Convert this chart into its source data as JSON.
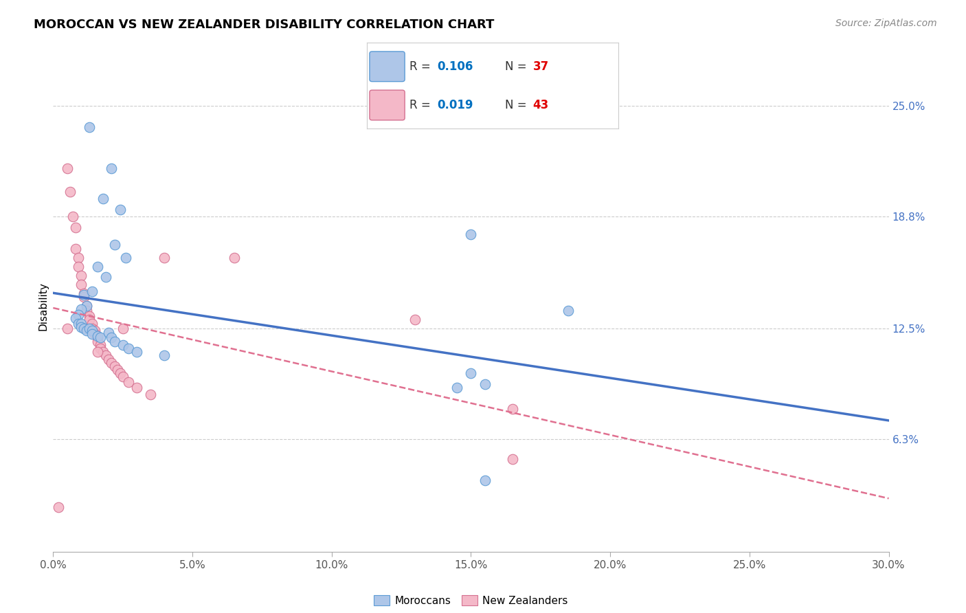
{
  "title": "MOROCCAN VS NEW ZEALANDER DISABILITY CORRELATION CHART",
  "source": "Source: ZipAtlas.com",
  "ylabel": "Disability",
  "xlim": [
    0.0,
    0.3
  ],
  "ylim": [
    0.0,
    27.5
  ],
  "moroccan_color": "#aec6e8",
  "moroccan_edge_color": "#5b9bd5",
  "nz_color": "#f4b8c8",
  "nz_edge_color": "#d47090",
  "moroccan_line_color": "#4472c4",
  "nz_line_color": "#e07090",
  "legend_R_color": "#0070c0",
  "legend_N_color": "#e00000",
  "ytick_positions": [
    6.3,
    12.5,
    18.8,
    25.0
  ],
  "ytick_labels": [
    "6.3%",
    "12.5%",
    "18.8%",
    "25.0%"
  ],
  "moroccan_x": [
    0.013,
    0.021,
    0.018,
    0.024,
    0.022,
    0.026,
    0.016,
    0.019,
    0.011,
    0.014,
    0.012,
    0.01,
    0.009,
    0.008,
    0.009,
    0.01,
    0.01,
    0.011,
    0.012,
    0.013,
    0.014,
    0.014,
    0.016,
    0.017,
    0.02,
    0.021,
    0.022,
    0.025,
    0.027,
    0.03,
    0.04,
    0.15,
    0.185,
    0.155,
    0.145,
    0.15,
    0.155
  ],
  "moroccan_y": [
    23.8,
    21.5,
    19.8,
    19.2,
    17.2,
    16.5,
    16.0,
    15.4,
    14.4,
    14.6,
    13.8,
    13.6,
    13.3,
    13.1,
    12.8,
    12.8,
    12.6,
    12.5,
    12.4,
    12.5,
    12.4,
    12.2,
    12.1,
    12.0,
    12.3,
    12.0,
    11.8,
    11.6,
    11.4,
    11.2,
    11.0,
    17.8,
    13.5,
    9.4,
    9.2,
    10.0,
    4.0
  ],
  "nz_x": [
    0.005,
    0.006,
    0.007,
    0.008,
    0.008,
    0.009,
    0.009,
    0.01,
    0.01,
    0.011,
    0.011,
    0.012,
    0.012,
    0.013,
    0.013,
    0.014,
    0.014,
    0.015,
    0.015,
    0.016,
    0.016,
    0.017,
    0.017,
    0.018,
    0.019,
    0.02,
    0.021,
    0.022,
    0.023,
    0.024,
    0.025,
    0.027,
    0.03,
    0.035,
    0.04,
    0.13,
    0.005,
    0.016,
    0.025,
    0.065,
    0.002,
    0.165,
    0.165
  ],
  "nz_y": [
    21.5,
    20.2,
    18.8,
    18.2,
    17.0,
    16.5,
    16.0,
    15.5,
    15.0,
    14.5,
    14.3,
    13.8,
    13.5,
    13.2,
    13.0,
    12.8,
    12.5,
    12.4,
    12.2,
    12.0,
    11.8,
    11.6,
    11.4,
    11.2,
    11.0,
    10.8,
    10.6,
    10.4,
    10.2,
    10.0,
    9.8,
    9.5,
    9.2,
    8.8,
    16.5,
    13.0,
    12.5,
    11.2,
    12.5,
    16.5,
    2.5,
    8.0,
    5.2
  ]
}
